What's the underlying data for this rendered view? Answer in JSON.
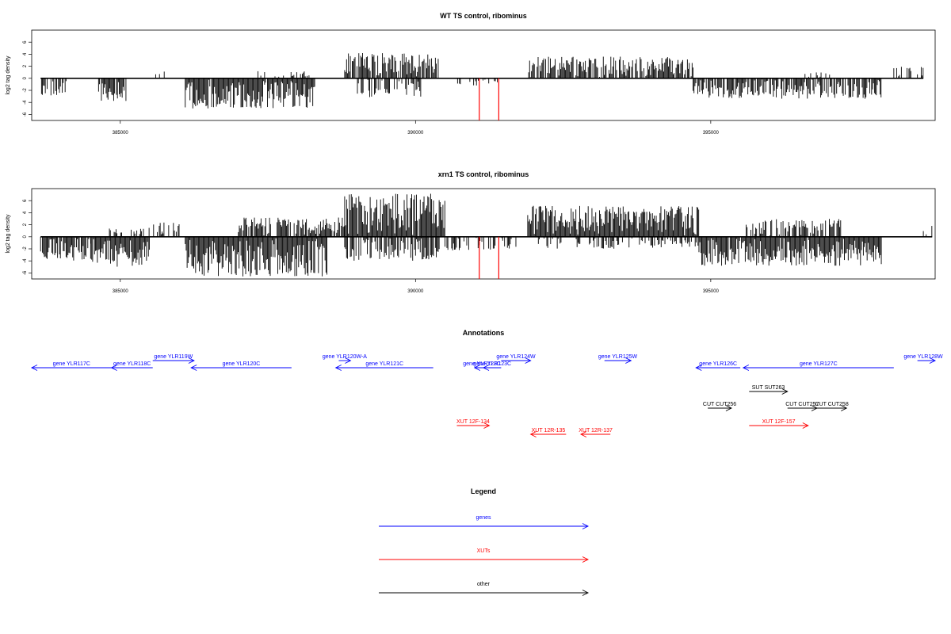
{
  "chart_data": [
    {
      "type": "bar",
      "title": "WT TS control, ribominus",
      "ylabel": "log2 tag density",
      "xlim": [
        383500,
        398800
      ],
      "ylim": [
        -7,
        8
      ],
      "x_ticks": [
        385000,
        390000,
        395000
      ],
      "x_tick_labels": [
        "385000",
        "390000",
        "395000"
      ],
      "y_ticks": [
        -6,
        -4,
        -2,
        0,
        2,
        4,
        6
      ],
      "y_tick_labels": [
        "-6",
        "-4",
        "-2",
        "0",
        "2",
        "4",
        "6"
      ],
      "signal_segments": [
        {
          "start": 383650,
          "end": 384100,
          "strand": "minus",
          "max": 3.2,
          "density": 0.55
        },
        {
          "start": 384600,
          "end": 385100,
          "strand": "minus",
          "max": 3.8,
          "density": 0.8
        },
        {
          "start": 385600,
          "end": 385750,
          "strand": "plus",
          "max": 1.2,
          "density": 0.4
        },
        {
          "start": 386100,
          "end": 388300,
          "strand": "minus",
          "max": 5.0,
          "density": 1.0
        },
        {
          "start": 387300,
          "end": 388200,
          "strand": "plus",
          "max": 1.2,
          "density": 0.35
        },
        {
          "start": 388800,
          "end": 390400,
          "strand": "plus",
          "max": 4.2,
          "density": 0.9
        },
        {
          "start": 389000,
          "end": 390100,
          "strand": "minus",
          "max": 3.2,
          "density": 0.6
        },
        {
          "start": 390600,
          "end": 391500,
          "strand": "minus",
          "max": 1.2,
          "density": 0.25
        },
        {
          "start": 391900,
          "end": 394700,
          "strand": "plus",
          "max": 3.6,
          "density": 0.75
        },
        {
          "start": 394700,
          "end": 397900,
          "strand": "minus",
          "max": 3.4,
          "density": 0.75
        },
        {
          "start": 396500,
          "end": 397200,
          "strand": "plus",
          "max": 1.2,
          "density": 0.25
        },
        {
          "start": 398100,
          "end": 398600,
          "strand": "plus",
          "max": 2.0,
          "density": 0.3
        }
      ],
      "red_marks": [
        391080,
        391410
      ],
      "red_mark_value": -7
    },
    {
      "type": "bar",
      "title": "xrn1 TS control, ribominus",
      "ylabel": "log2 tag density",
      "xlim": [
        383500,
        398800
      ],
      "ylim": [
        -7,
        8
      ],
      "x_ticks": [
        385000,
        390000,
        395000
      ],
      "x_tick_labels": [
        "385000",
        "390000",
        "395000"
      ],
      "y_ticks": [
        -6,
        -4,
        -2,
        0,
        2,
        4,
        6
      ],
      "y_tick_labels": [
        "-6",
        "-4",
        "-2",
        "0",
        "2",
        "4",
        "6"
      ],
      "signal_segments": [
        {
          "start": 383650,
          "end": 384500,
          "strand": "minus",
          "max": 4.0,
          "density": 0.9
        },
        {
          "start": 384500,
          "end": 385500,
          "strand": "minus",
          "max": 5.0,
          "density": 1.0
        },
        {
          "start": 384800,
          "end": 385500,
          "strand": "plus",
          "max": 1.5,
          "density": 0.4
        },
        {
          "start": 385500,
          "end": 386000,
          "strand": "plus",
          "max": 2.4,
          "density": 0.5
        },
        {
          "start": 386100,
          "end": 388500,
          "strand": "minus",
          "max": 6.6,
          "density": 1.0
        },
        {
          "start": 387000,
          "end": 388800,
          "strand": "plus",
          "max": 3.2,
          "density": 0.8
        },
        {
          "start": 388800,
          "end": 390500,
          "strand": "plus",
          "max": 7.2,
          "density": 1.0
        },
        {
          "start": 388800,
          "end": 390400,
          "strand": "minus",
          "max": 4.0,
          "density": 0.7
        },
        {
          "start": 390500,
          "end": 391700,
          "strand": "minus",
          "max": 2.4,
          "density": 0.45
        },
        {
          "start": 391900,
          "end": 394800,
          "strand": "plus",
          "max": 5.2,
          "density": 1.0
        },
        {
          "start": 392000,
          "end": 394800,
          "strand": "minus",
          "max": 2.0,
          "density": 0.4
        },
        {
          "start": 394800,
          "end": 397900,
          "strand": "minus",
          "max": 4.8,
          "density": 1.0
        },
        {
          "start": 395600,
          "end": 397200,
          "strand": "plus",
          "max": 3.0,
          "density": 0.55
        },
        {
          "start": 398600,
          "end": 398750,
          "strand": "plus",
          "max": 2.8,
          "density": 0.5
        }
      ],
      "red_marks": [
        391080,
        391410
      ],
      "red_mark_value": -7
    },
    {
      "type": "annotation-track",
      "title": "Annotations",
      "features": [
        {
          "label": "gene YLR117C",
          "start": 383450,
          "end": 384850,
          "strand": "-",
          "type": "gene",
          "lane": 1
        },
        {
          "label": "gene YLR118C",
          "start": 384850,
          "end": 385550,
          "strand": "-",
          "type": "gene",
          "lane": 1
        },
        {
          "label": "gene YLR119W",
          "start": 385550,
          "end": 386250,
          "strand": "+",
          "type": "gene",
          "lane": 0
        },
        {
          "label": "gene YLR120C",
          "start": 386200,
          "end": 387900,
          "strand": "-",
          "type": "gene",
          "lane": 1
        },
        {
          "label": "gene YLR120W-A",
          "start": 388700,
          "end": 388900,
          "strand": "+",
          "type": "gene",
          "lane": 0
        },
        {
          "label": "gene YLR121C",
          "start": 388650,
          "end": 390300,
          "strand": "-",
          "type": "gene",
          "lane": 1
        },
        {
          "label": "gene YLR122C",
          "start": 391000,
          "end": 391250,
          "strand": "-",
          "type": "gene",
          "lane": 1
        },
        {
          "label": "gene YLR123C",
          "start": 391150,
          "end": 391450,
          "strand": "-",
          "type": "gene",
          "lane": 1
        },
        {
          "label": "gene YLR124W",
          "start": 391450,
          "end": 391950,
          "strand": "+",
          "type": "gene",
          "lane": 0
        },
        {
          "label": "gene YLR125W",
          "start": 393200,
          "end": 393650,
          "strand": "+",
          "type": "gene",
          "lane": 0
        },
        {
          "label": "gene YLR126C",
          "start": 394750,
          "end": 395500,
          "strand": "-",
          "type": "gene",
          "lane": 1
        },
        {
          "label": "gene YLR127C",
          "start": 395550,
          "end": 398100,
          "strand": "-",
          "type": "gene",
          "lane": 1
        },
        {
          "label": "gene YLR128W",
          "start": 398500,
          "end": 398800,
          "strand": "+",
          "type": "gene",
          "lane": 0
        },
        {
          "label": "SUT SUT263",
          "start": 395650,
          "end": 396300,
          "strand": "+",
          "type": "other",
          "lane": 2
        },
        {
          "label": "CUT CUT256",
          "start": 394950,
          "end": 395350,
          "strand": "+",
          "type": "other",
          "lane": 3
        },
        {
          "label": "CUT CUT257",
          "start": 396300,
          "end": 396800,
          "strand": "+",
          "type": "other",
          "lane": 3
        },
        {
          "label": "CUT CUT258",
          "start": 396800,
          "end": 397300,
          "strand": "+",
          "type": "other",
          "lane": 3
        },
        {
          "label": "XUT 12F-134",
          "start": 390700,
          "end": 391250,
          "strand": "+",
          "type": "XUT",
          "lane": 4
        },
        {
          "label": "XUT 12R-135",
          "start": 391950,
          "end": 392550,
          "strand": "-",
          "type": "XUT",
          "lane": 5
        },
        {
          "label": "XUT 12R-137",
          "start": 392800,
          "end": 393300,
          "strand": "-",
          "type": "XUT",
          "lane": 5
        },
        {
          "label": "XUT 12F-157",
          "start": 395650,
          "end": 396650,
          "strand": "+",
          "type": "XUT",
          "lane": 4
        }
      ]
    }
  ],
  "legend": {
    "title": "Legend",
    "items": [
      {
        "label": "genes",
        "color": "#0000ff"
      },
      {
        "label": "XUTs",
        "color": "#ff0000"
      },
      {
        "label": "other",
        "color": "#000000"
      }
    ]
  },
  "colors": {
    "genes": "#0000ff",
    "XUT": "#ff0000",
    "other": "#000000",
    "signal": "#000000",
    "red_mark": "#ff0000"
  }
}
